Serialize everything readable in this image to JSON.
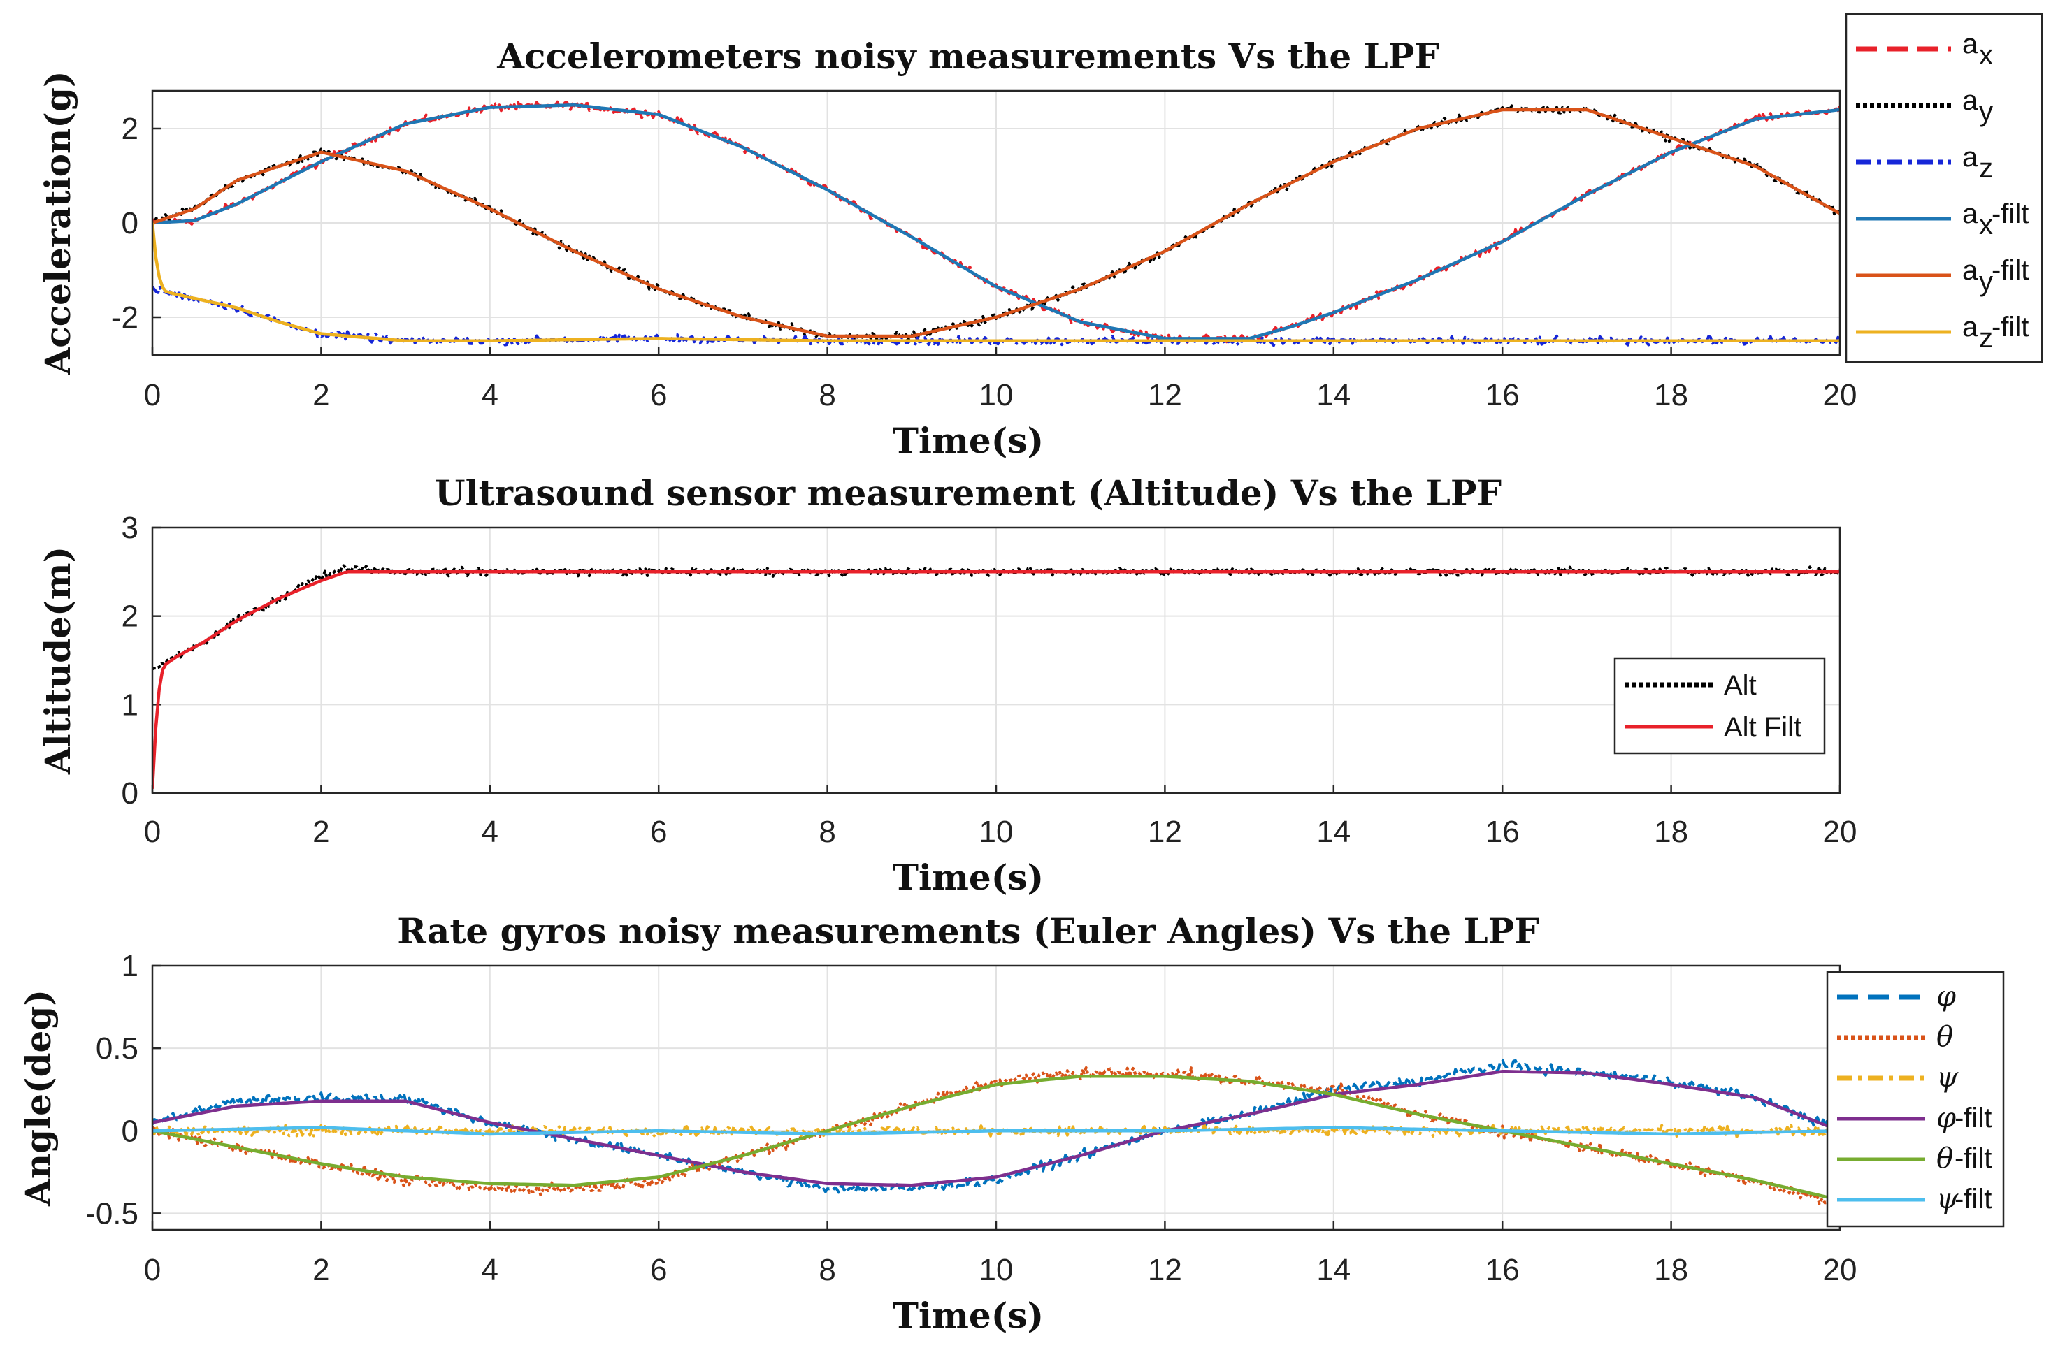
{
  "chart_data": [
    {
      "type": "line",
      "title": "Accelerometers noisy measurements Vs the LPF",
      "xlabel": "Time(s)",
      "ylabel": "Acceleration(g)",
      "xlim": [
        0,
        20
      ],
      "ylim": [
        -2.8,
        2.8
      ],
      "xticks": [
        "0",
        "2",
        "4",
        "6",
        "8",
        "10",
        "12",
        "14",
        "16",
        "18",
        "20"
      ],
      "yticks": [
        "-2",
        "0",
        "2"
      ],
      "grid": true,
      "legend_position": "outside-top-right",
      "series": [
        {
          "name": "a",
          "sub": "x",
          "suffix": "",
          "color": "#e8212a",
          "style": "dashed-noisy",
          "x": [
            0,
            0.5,
            1,
            2,
            3,
            4,
            5,
            6,
            7,
            8,
            9,
            10,
            11,
            12,
            13,
            13.5,
            14,
            15,
            16,
            17,
            18,
            19,
            20
          ],
          "y": [
            0,
            0.05,
            0.4,
            1.3,
            2.1,
            2.45,
            2.5,
            2.3,
            1.6,
            0.7,
            -0.3,
            -1.35,
            -2.1,
            -2.45,
            -2.45,
            -2.2,
            -1.9,
            -1.2,
            -0.4,
            0.6,
            1.5,
            2.2,
            2.4
          ]
        },
        {
          "name": "a",
          "sub": "y",
          "suffix": "",
          "color": "#000000",
          "style": "dotted-noisy",
          "x": [
            0,
            0.5,
            1,
            2,
            3,
            4,
            5,
            6,
            7,
            8,
            9,
            10,
            11,
            12,
            13,
            14,
            15,
            16,
            17,
            18,
            19,
            20
          ],
          "y": [
            0,
            0.3,
            0.9,
            1.5,
            1.1,
            0.3,
            -0.6,
            -1.4,
            -2.0,
            -2.4,
            -2.4,
            -2.0,
            -1.4,
            -0.6,
            0.4,
            1.3,
            2.0,
            2.4,
            2.4,
            1.8,
            1.2,
            0.2
          ]
        },
        {
          "name": "a",
          "sub": "z",
          "suffix": "",
          "color": "#1626d8",
          "style": "dashdot-noisy",
          "x": [
            0,
            0.5,
            1,
            1.5,
            2,
            3,
            4,
            6,
            8,
            10,
            12,
            14,
            16,
            18,
            20
          ],
          "y": [
            -1.4,
            -1.6,
            -1.8,
            -2.1,
            -2.35,
            -2.5,
            -2.5,
            -2.45,
            -2.5,
            -2.5,
            -2.5,
            -2.5,
            -2.5,
            -2.5,
            -2.5
          ]
        },
        {
          "name": "a",
          "sub": "x",
          "suffix": "-filt",
          "color": "#1f77b4",
          "style": "solid",
          "x": [
            0,
            0.5,
            1,
            2,
            3,
            4,
            5,
            6,
            7,
            8,
            9,
            10,
            11,
            12,
            13,
            13.5,
            14,
            15,
            16,
            17,
            18,
            19,
            20
          ],
          "y": [
            0,
            0.05,
            0.4,
            1.3,
            2.1,
            2.45,
            2.5,
            2.3,
            1.6,
            0.7,
            -0.3,
            -1.35,
            -2.1,
            -2.45,
            -2.45,
            -2.2,
            -1.9,
            -1.2,
            -0.4,
            0.6,
            1.5,
            2.2,
            2.4
          ]
        },
        {
          "name": "a",
          "sub": "y",
          "suffix": "-filt",
          "color": "#d95319",
          "style": "solid",
          "x": [
            0,
            0.5,
            1,
            2,
            3,
            4,
            5,
            6,
            7,
            8,
            9,
            10,
            11,
            12,
            13,
            14,
            15,
            16,
            17,
            18,
            19,
            20
          ],
          "y": [
            0,
            0.3,
            0.9,
            1.5,
            1.1,
            0.3,
            -0.6,
            -1.4,
            -2.0,
            -2.4,
            -2.4,
            -2.0,
            -1.4,
            -0.6,
            0.4,
            1.3,
            2.0,
            2.4,
            2.4,
            1.8,
            1.2,
            0.2
          ]
        },
        {
          "name": "a",
          "sub": "z",
          "suffix": "-filt",
          "color": "#edb120",
          "style": "solid",
          "x": [
            0,
            0.05,
            0.1,
            0.15,
            0.25,
            0.5,
            1,
            1.5,
            2,
            3,
            4,
            6,
            8,
            10,
            12,
            14,
            16,
            18,
            20
          ],
          "y": [
            0,
            -0.9,
            -1.3,
            -1.45,
            -1.5,
            -1.6,
            -1.8,
            -2.1,
            -2.35,
            -2.5,
            -2.5,
            -2.45,
            -2.5,
            -2.5,
            -2.5,
            -2.5,
            -2.5,
            -2.5,
            -2.5
          ]
        }
      ]
    },
    {
      "type": "line",
      "title": "Ultrasound sensor measurement (Altitude) Vs the LPF",
      "xlabel": "Time(s)",
      "ylabel": "Altitude(m)",
      "xlim": [
        0,
        20
      ],
      "ylim": [
        0,
        3
      ],
      "xticks": [
        "0",
        "2",
        "4",
        "6",
        "8",
        "10",
        "12",
        "14",
        "16",
        "18",
        "20"
      ],
      "yticks": [
        "0",
        "1",
        "2",
        "3"
      ],
      "grid": true,
      "legend_position": "center-right",
      "series": [
        {
          "name": "Alt",
          "color": "#000000",
          "style": "dotted-noisy",
          "x": [
            0,
            0.3,
            0.6,
            1,
            1.5,
            2,
            2.3,
            3,
            4,
            6,
            8,
            10,
            12,
            14,
            16,
            18,
            20
          ],
          "y": [
            1.4,
            1.55,
            1.7,
            1.95,
            2.2,
            2.45,
            2.55,
            2.5,
            2.5,
            2.5,
            2.5,
            2.5,
            2.5,
            2.5,
            2.5,
            2.5,
            2.5
          ]
        },
        {
          "name": "Alt Filt",
          "color": "#e8212a",
          "style": "solid",
          "x": [
            0,
            0.05,
            0.1,
            0.15,
            0.3,
            0.6,
            1,
            1.5,
            2,
            2.3,
            3,
            4,
            6,
            8,
            10,
            12,
            14,
            16,
            18,
            20
          ],
          "y": [
            0.05,
            0.9,
            1.35,
            1.45,
            1.55,
            1.7,
            1.95,
            2.2,
            2.4,
            2.5,
            2.5,
            2.5,
            2.5,
            2.5,
            2.5,
            2.5,
            2.5,
            2.5,
            2.5,
            2.5
          ]
        }
      ]
    },
    {
      "type": "line",
      "title": "Rate gyros noisy measurements (Euler Angles) Vs the LPF",
      "xlabel": "Time(s)",
      "ylabel": "Angle(deg)",
      "xlim": [
        0,
        20
      ],
      "ylim": [
        -0.6,
        1
      ],
      "xticks": [
        "0",
        "2",
        "4",
        "6",
        "8",
        "10",
        "12",
        "14",
        "16",
        "18",
        "20"
      ],
      "yticks": [
        "-0.5",
        "0",
        "0.5",
        "1"
      ],
      "grid": true,
      "legend_position": "right",
      "series": [
        {
          "name": "φ",
          "suffix": "",
          "color": "#0072bd",
          "style": "dashed-noisy",
          "x": [
            0,
            1,
            2,
            3,
            4,
            5,
            6,
            7,
            8,
            9,
            10,
            11,
            12,
            13,
            14,
            15,
            16,
            17,
            18,
            19,
            20
          ],
          "y": [
            0.05,
            0.18,
            0.2,
            0.2,
            0.05,
            -0.05,
            -0.15,
            -0.25,
            -0.35,
            -0.35,
            -0.3,
            -0.15,
            0.0,
            0.1,
            0.25,
            0.3,
            0.4,
            0.35,
            0.3,
            0.2,
            0.0
          ]
        },
        {
          "name": "θ",
          "suffix": "",
          "color": "#d95319",
          "style": "dotted-noisy",
          "x": [
            0,
            1,
            2,
            3,
            4,
            5,
            6,
            7,
            8,
            9,
            10,
            11,
            12,
            13,
            14,
            15,
            16,
            17,
            18,
            19,
            20
          ],
          "y": [
            0.0,
            -0.1,
            -0.2,
            -0.3,
            -0.35,
            -0.35,
            -0.3,
            -0.15,
            0.0,
            0.15,
            0.3,
            0.35,
            0.35,
            0.3,
            0.25,
            0.1,
            0.0,
            -0.1,
            -0.2,
            -0.3,
            -0.45
          ]
        },
        {
          "name": "ψ",
          "suffix": "",
          "color": "#edb120",
          "style": "dashdot-noisy",
          "x": [
            0,
            2,
            4,
            6,
            8,
            10,
            12,
            14,
            16,
            18,
            20
          ],
          "y": [
            0.0,
            0.0,
            0.0,
            0.0,
            0.0,
            0.0,
            0.0,
            0.0,
            0.0,
            0.0,
            0.0
          ]
        },
        {
          "name": "φ",
          "suffix": "-filt",
          "color": "#7e2f8e",
          "style": "solid",
          "x": [
            0,
            1,
            2,
            3,
            4,
            5,
            6,
            7,
            8,
            9,
            10,
            11,
            12,
            13,
            14,
            15,
            16,
            17,
            18,
            19,
            20
          ],
          "y": [
            0.05,
            0.15,
            0.18,
            0.18,
            0.05,
            -0.05,
            -0.15,
            -0.25,
            -0.32,
            -0.33,
            -0.28,
            -0.15,
            0.0,
            0.1,
            0.22,
            0.28,
            0.36,
            0.35,
            0.28,
            0.2,
            0.0
          ]
        },
        {
          "name": "θ",
          "suffix": "-filt",
          "color": "#77ac30",
          "style": "solid",
          "x": [
            0,
            1,
            2,
            3,
            4,
            5,
            6,
            7,
            8,
            9,
            10,
            11,
            12,
            13,
            14,
            15,
            16,
            17,
            18,
            19,
            20
          ],
          "y": [
            0.0,
            -0.1,
            -0.2,
            -0.28,
            -0.32,
            -0.33,
            -0.28,
            -0.15,
            0.0,
            0.15,
            0.28,
            0.33,
            0.33,
            0.3,
            0.22,
            0.1,
            0.0,
            -0.1,
            -0.2,
            -0.3,
            -0.42
          ]
        },
        {
          "name": "ψ",
          "suffix": "-filt",
          "color": "#4dbeee",
          "style": "solid",
          "x": [
            0,
            2,
            4,
            6,
            8,
            10,
            12,
            14,
            16,
            18,
            20
          ],
          "y": [
            0.0,
            0.02,
            -0.02,
            0.0,
            -0.02,
            0.0,
            0.0,
            0.02,
            0.0,
            -0.02,
            0.0
          ]
        }
      ]
    }
  ]
}
